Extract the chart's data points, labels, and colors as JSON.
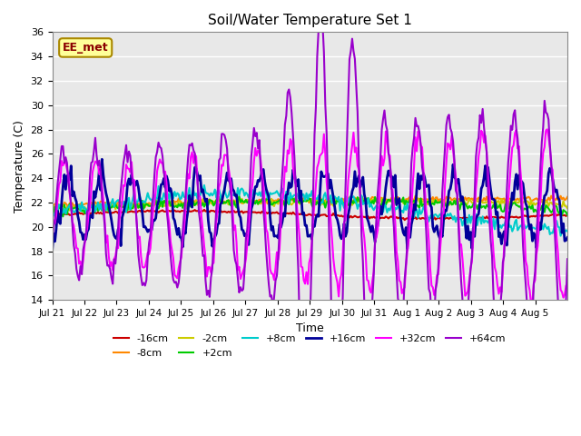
{
  "title": "Soil/Water Temperature Set 1",
  "xlabel": "Time",
  "ylabel": "Temperature (C)",
  "ylim": [
    14,
    36
  ],
  "n_days": 16,
  "x_tick_labels": [
    "Jul 21",
    "Jul 22",
    "Jul 23",
    "Jul 24",
    "Jul 25",
    "Jul 26",
    "Jul 27",
    "Jul 28",
    "Jul 29",
    "Jul 30",
    "Jul 31",
    "Aug 1",
    "Aug 2",
    "Aug 3",
    "Aug 4",
    "Aug 5"
  ],
  "bg_color": "#e8e8e8",
  "series": {
    "-16cm": {
      "color": "#cc0000",
      "lw": 1.5
    },
    "-8cm": {
      "color": "#ff8800",
      "lw": 1.5
    },
    "-2cm": {
      "color": "#cccc00",
      "lw": 1.5
    },
    "+2cm": {
      "color": "#00cc00",
      "lw": 1.5
    },
    "+8cm": {
      "color": "#00cccc",
      "lw": 1.5
    },
    "+16cm": {
      "color": "#000099",
      "lw": 2.0
    },
    "+32cm": {
      "color": "#ff00ff",
      "lw": 1.5
    },
    "+64cm": {
      "color": "#9900cc",
      "lw": 1.5
    }
  },
  "annotation_text": "EE_met",
  "annotation_bg": "#ffff99",
  "annotation_border": "#aa8800"
}
